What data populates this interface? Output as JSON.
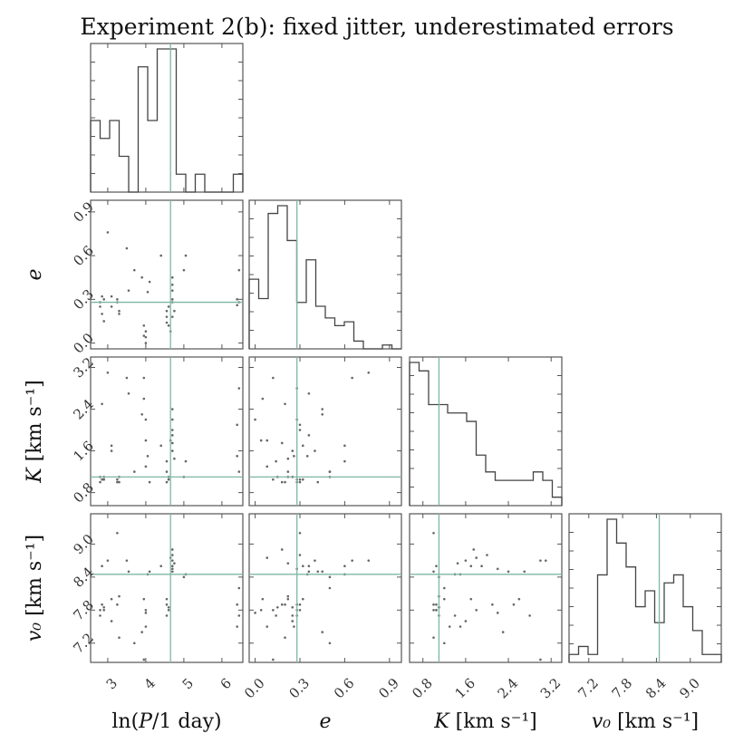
{
  "title": "Experiment 2(b): fixed jitter, underestimated errors",
  "colors": {
    "truth_line": "#7fb6a3",
    "histogram": "#444444",
    "points": "#666666",
    "frame": "#555555"
  },
  "chart_data": {
    "type": "corner",
    "title": "Experiment 2(b): fixed jitter, underestimated errors",
    "parameters": [
      {
        "key": "lnP",
        "label_main": "ln(",
        "label_it": "P",
        "label_rest": "/1 day)",
        "range": [
          2.55,
          6.55
        ],
        "ticks": [
          3,
          4,
          5,
          6
        ],
        "tick_labels": [
          "3",
          "4",
          "5",
          "6"
        ],
        "truth": 4.65
      },
      {
        "key": "e",
        "label_main": "",
        "label_it": "e",
        "label_rest": "",
        "range": [
          -0.04,
          0.98
        ],
        "ticks": [
          0.0,
          0.3,
          0.6,
          0.9
        ],
        "tick_labels": [
          "0.0",
          "0.3",
          "0.6",
          "0.9"
        ],
        "truth": 0.28
      },
      {
        "key": "K",
        "label_main": "",
        "label_it": "K",
        "label_rest": " [km s⁻¹]",
        "range": [
          0.55,
          3.4
        ],
        "ticks": [
          0.8,
          1.6,
          2.4,
          3.2
        ],
        "tick_labels": [
          "0.8",
          "1.6",
          "2.4",
          "3.2"
        ],
        "truth": 1.1
      },
      {
        "key": "v0",
        "label_main": "",
        "label_it": "v₀",
        "label_rest": " [km s⁻¹]",
        "range": [
          6.85,
          9.55
        ],
        "ticks": [
          7.2,
          7.8,
          8.4,
          9.0
        ],
        "tick_labels": [
          "7.2",
          "7.8",
          "8.4",
          "9.0"
        ],
        "truth": 8.45
      }
    ],
    "histograms": [
      {
        "param": "lnP",
        "bins": 16,
        "counts": [
          4,
          3,
          4,
          2,
          0,
          7,
          4,
          8,
          8,
          1,
          0,
          1,
          0,
          0,
          0,
          1
        ]
      },
      {
        "param": "e",
        "bins": 16,
        "counts": [
          18,
          13,
          35,
          37,
          28,
          12,
          23,
          11,
          8,
          6,
          7,
          2,
          0,
          0,
          1,
          0
        ]
      },
      {
        "param": "K",
        "bins": 16,
        "counts": [
          17,
          16,
          12,
          12,
          11,
          11,
          10,
          6,
          4,
          3,
          3,
          3,
          3,
          4,
          3,
          1
        ]
      },
      {
        "param": "v0",
        "bins": 16,
        "counts": [
          1,
          2,
          1,
          11,
          18,
          15,
          12,
          7,
          9,
          5,
          10,
          11,
          7,
          4,
          1,
          1
        ]
      }
    ],
    "samples": [
      [
        2.8,
        0.28,
        1.0,
        7.8
      ],
      [
        2.8,
        0.25,
        1.1,
        7.7
      ],
      [
        2.85,
        0.32,
        1.05,
        8.6
      ],
      [
        2.85,
        0.2,
        2.5,
        7.9
      ],
      [
        2.9,
        0.15,
        1.1,
        7.85
      ],
      [
        3.0,
        0.76,
        3.1,
        8.7
      ],
      [
        3.1,
        0.25,
        1.6,
        7.6
      ],
      [
        3.1,
        0.32,
        1.7,
        8.0
      ],
      [
        3.25,
        0.3,
        1.0,
        9.2
      ],
      [
        3.25,
        0.28,
        1.05,
        7.9
      ],
      [
        3.3,
        0.22,
        1.1,
        8.05
      ],
      [
        3.3,
        0.2,
        1.0,
        7.3
      ],
      [
        3.5,
        0.65,
        3.0,
        8.7
      ],
      [
        3.55,
        0.36,
        2.7,
        8.5
      ],
      [
        3.7,
        0.5,
        1.2,
        7.2
      ],
      [
        3.9,
        0.45,
        2.3,
        7.4
      ],
      [
        3.95,
        0.12,
        3.0,
        6.9
      ],
      [
        3.95,
        0.05,
        2.6,
        8.0
      ],
      [
        4.0,
        0.0,
        2.2,
        7.75
      ],
      [
        4.0,
        0.04,
        1.8,
        7.8
      ],
      [
        4.0,
        0.08,
        1.3,
        7.5
      ],
      [
        4.05,
        0.35,
        1.5,
        8.45
      ],
      [
        4.1,
        0.42,
        1.0,
        8.5
      ],
      [
        4.4,
        0.6,
        1.7,
        8.6
      ],
      [
        4.55,
        0.18,
        1.0,
        7.9
      ],
      [
        4.55,
        0.22,
        1.2,
        8.0
      ],
      [
        4.55,
        0.14,
        1.4,
        7.7
      ],
      [
        4.6,
        0.12,
        1.05,
        7.8
      ],
      [
        4.6,
        0.25,
        1.1,
        7.85
      ],
      [
        4.65,
        0.08,
        1.8,
        8.75
      ],
      [
        4.7,
        0.3,
        2.0,
        8.8
      ],
      [
        4.7,
        0.36,
        1.9,
        8.6
      ],
      [
        4.7,
        0.4,
        1.6,
        8.7
      ],
      [
        4.7,
        0.45,
        2.4,
        8.5
      ],
      [
        4.7,
        0.18,
        1.75,
        8.9
      ],
      [
        4.7,
        0.28,
        2.2,
        8.55
      ],
      [
        4.75,
        0.22,
        1.45,
        8.65
      ],
      [
        5.0,
        0.5,
        1.1,
        8.4
      ],
      [
        5.05,
        0.6,
        1.4,
        8.45
      ],
      [
        6.4,
        0.3,
        2.1,
        7.9
      ],
      [
        6.4,
        0.26,
        1.5,
        7.5
      ],
      [
        6.45,
        0.5,
        1.2,
        8.2
      ],
      [
        6.45,
        0.28,
        2.8,
        7.7
      ],
      [
        2.9,
        0.3,
        1.05,
        7.8
      ]
    ]
  }
}
